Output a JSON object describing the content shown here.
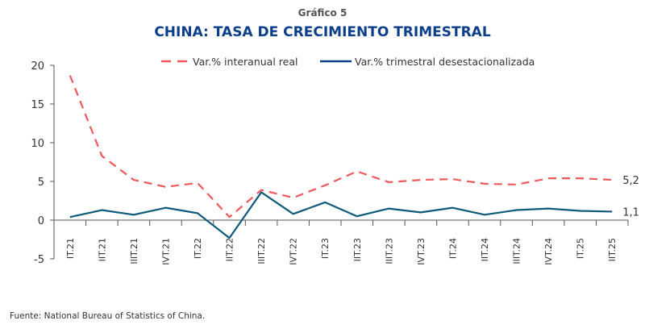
{
  "title": {
    "label": "Gráfico 5",
    "main": "CHINA: TASA DE CRECIMIENTO TRIMESTRAL"
  },
  "source": "Fuente: National Bureau of Statistics of China.",
  "chart_data": {
    "type": "line",
    "title": "CHINA: TASA DE CRECIMIENTO TRIMESTRAL",
    "xlabel": "",
    "ylabel": "",
    "ylim": [
      -5,
      20
    ],
    "yticks": [
      "-5",
      "0",
      "5",
      "10",
      "15",
      "20"
    ],
    "yticks_values": [
      -5,
      0,
      5,
      10,
      15,
      20
    ],
    "grid": false,
    "legend_placement": "top-center",
    "categories": [
      "IT.21",
      "IIT.21",
      "IIIT.21",
      "IVT.21",
      "IT.22",
      "IIT.22",
      "IIIT.22",
      "IVT.22",
      "IT.23",
      "IIT.23",
      "IIIT.23",
      "IVT.23",
      "IT.24",
      "IIT.24",
      "IIIT.24",
      "IVT.24",
      "IT.25",
      "IIT.25"
    ],
    "series": [
      {
        "name": "Var.% interanual real",
        "color": "#f0595b",
        "style": "dashed",
        "end_label": "5,2",
        "values": [
          18.7,
          8.3,
          5.2,
          4.3,
          4.8,
          0.4,
          3.9,
          2.9,
          4.5,
          6.3,
          4.9,
          5.2,
          5.3,
          4.7,
          4.6,
          5.4,
          5.4,
          5.2
        ]
      },
      {
        "name": "Var.% trimestral desestacionalizada",
        "color": "#0e5a7a",
        "legend_color": "#0b3f8c",
        "style": "solid",
        "end_label": "1,1",
        "values": [
          0.4,
          1.3,
          0.7,
          1.6,
          0.9,
          -2.3,
          3.6,
          0.8,
          2.3,
          0.5,
          1.5,
          1.0,
          1.6,
          0.7,
          1.3,
          1.5,
          1.2,
          1.1
        ]
      }
    ]
  }
}
